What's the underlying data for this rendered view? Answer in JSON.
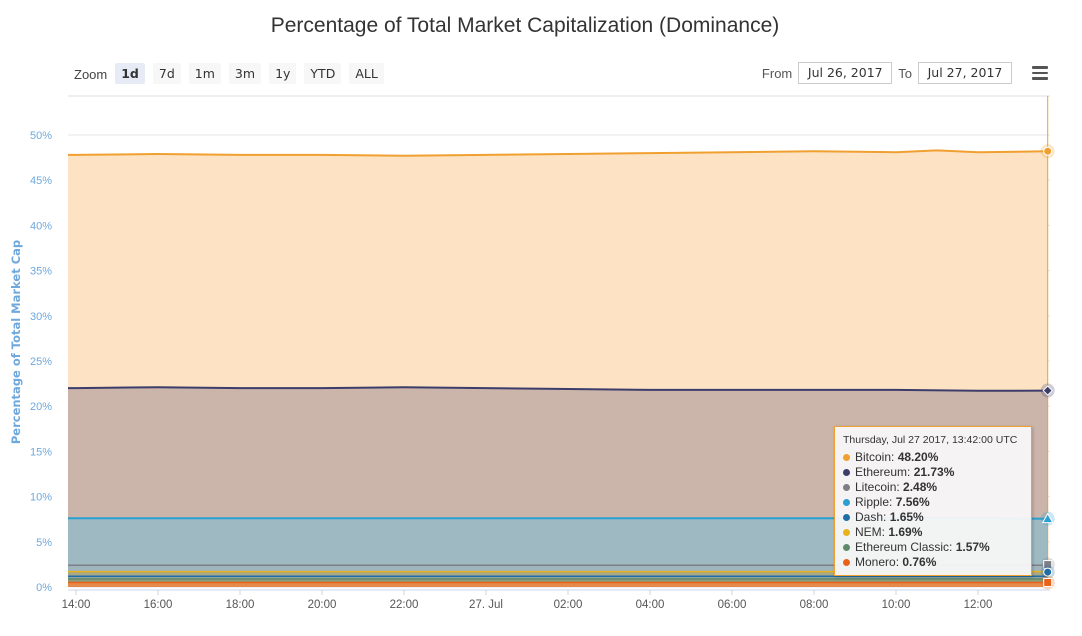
{
  "chart_data": {
    "type": "area",
    "title": "Percentage of Total Market Capitalization (Dominance)",
    "ylabel": "Percentage of Total Market Capitalization (Dominance)",
    "ylabel_short": "Percentage of Total Market Cap",
    "ylim": [
      0,
      50
    ],
    "yticks": [
      "0%",
      "5%",
      "10%",
      "15%",
      "20%",
      "25%",
      "30%",
      "35%",
      "40%",
      "45%",
      "50%"
    ],
    "xticks": [
      "14:00",
      "16:00",
      "18:00",
      "20:00",
      "22:00",
      "27. Jul",
      "02:00",
      "04:00",
      "06:00",
      "08:00",
      "10:00",
      "12:00"
    ],
    "x_hours": [
      0,
      24
    ],
    "grid": true,
    "series": [
      {
        "name": "Bitcoin",
        "color": "#f0a030",
        "fill": "#fde3c4",
        "x": [
          0,
          2,
          4,
          6,
          8,
          10,
          12,
          14,
          16,
          18,
          20,
          21,
          22,
          23.7
        ],
        "values": [
          47.8,
          47.9,
          47.8,
          47.8,
          47.7,
          47.8,
          47.9,
          48.0,
          48.1,
          48.2,
          48.1,
          48.3,
          48.1,
          48.2
        ]
      },
      {
        "name": "Ethereum",
        "color": "#3d3d6b",
        "fill": "#cbb5aa",
        "x": [
          0,
          2,
          4,
          6,
          8,
          10,
          12,
          14,
          16,
          18,
          20,
          22,
          23.7
        ],
        "values": [
          22.0,
          22.1,
          22.0,
          22.0,
          22.1,
          22.0,
          21.9,
          21.8,
          21.8,
          21.8,
          21.8,
          21.7,
          21.73
        ]
      },
      {
        "name": "Litecoin",
        "color": "#7e7e86",
        "fill": "#9fb4bd",
        "x": [
          0,
          6,
          12,
          18,
          23.7
        ],
        "values": [
          2.5,
          2.5,
          2.5,
          2.5,
          2.48
        ]
      },
      {
        "name": "Ripple",
        "color": "#2a9fd0",
        "fill": "#9fb9c3",
        "x": [
          0,
          2,
          4,
          6,
          8,
          10,
          12,
          14,
          16,
          18,
          20,
          22,
          23.7
        ],
        "values": [
          7.6,
          7.6,
          7.6,
          7.6,
          7.6,
          7.6,
          7.6,
          7.6,
          7.6,
          7.6,
          7.6,
          7.6,
          7.56
        ]
      },
      {
        "name": "Dash",
        "color": "#1f6da5",
        "fill": "#8da3a6",
        "x": [
          0,
          12,
          23.7
        ],
        "values": [
          1.7,
          1.68,
          1.65
        ]
      },
      {
        "name": "NEM",
        "color": "#e8b21a",
        "fill": "#a8a889",
        "x": [
          0,
          12,
          23.7
        ],
        "values": [
          1.7,
          1.7,
          1.69
        ]
      },
      {
        "name": "Ethereum Classic",
        "color": "#5f8a6a",
        "fill": "#8b9a7a",
        "x": [
          0,
          12,
          23.7
        ],
        "values": [
          1.6,
          1.58,
          1.57
        ]
      },
      {
        "name": "Monero",
        "color": "#e8621a",
        "fill": "#e58a4c",
        "x": [
          0,
          12,
          23.7
        ],
        "values": [
          0.75,
          0.76,
          0.76
        ]
      }
    ],
    "tooltip": {
      "header": "Thursday, Jul 27 2017, 13:42:00 UTC",
      "rows": [
        {
          "name": "Bitcoin",
          "value": "48.20%",
          "color": "#f0a030"
        },
        {
          "name": "Ethereum",
          "value": "21.73%",
          "color": "#3d3d6b"
        },
        {
          "name": "Litecoin",
          "value": "2.48%",
          "color": "#7e7e86"
        },
        {
          "name": "Ripple",
          "value": "7.56%",
          "color": "#2a9fd0"
        },
        {
          "name": "Dash",
          "value": "1.65%",
          "color": "#1f6da5"
        },
        {
          "name": "NEM",
          "value": "1.69%",
          "color": "#e8b21a"
        },
        {
          "name": "Ethereum Classic",
          "value": "1.57%",
          "color": "#5f8a6a"
        },
        {
          "name": "Monero",
          "value": "0.76%",
          "color": "#e8621a"
        }
      ]
    },
    "legend": "none"
  },
  "toolbar": {
    "zoom_label": "Zoom",
    "ranges": [
      "1d",
      "7d",
      "1m",
      "3m",
      "1y",
      "YTD",
      "ALL"
    ],
    "active_range": "1d",
    "from_label": "From",
    "from_value": "Jul 26, 2017",
    "to_label": "To",
    "to_value": "Jul 27, 2017"
  }
}
